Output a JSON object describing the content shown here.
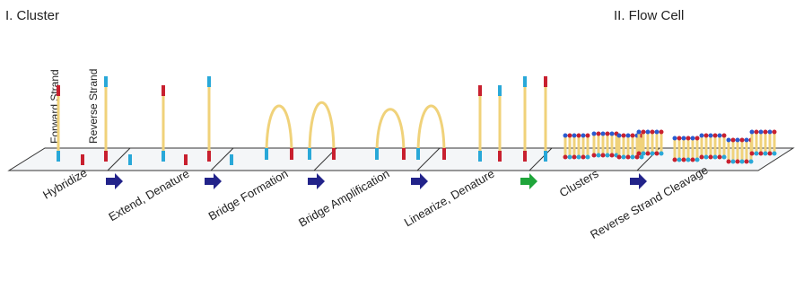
{
  "header": {
    "left_title": "I. Cluster",
    "right_title": "II. Flow Cell"
  },
  "strand_labels": {
    "forward": "Forward Strand",
    "reverse": "Reverse Strand"
  },
  "steps": [
    "Hybridize",
    "Extend, Denature",
    "Bridge Formation",
    "Bridge Amplification",
    "Linearize, Denature",
    "Clusters",
    "Reverse Strand Cleavage"
  ]
}
